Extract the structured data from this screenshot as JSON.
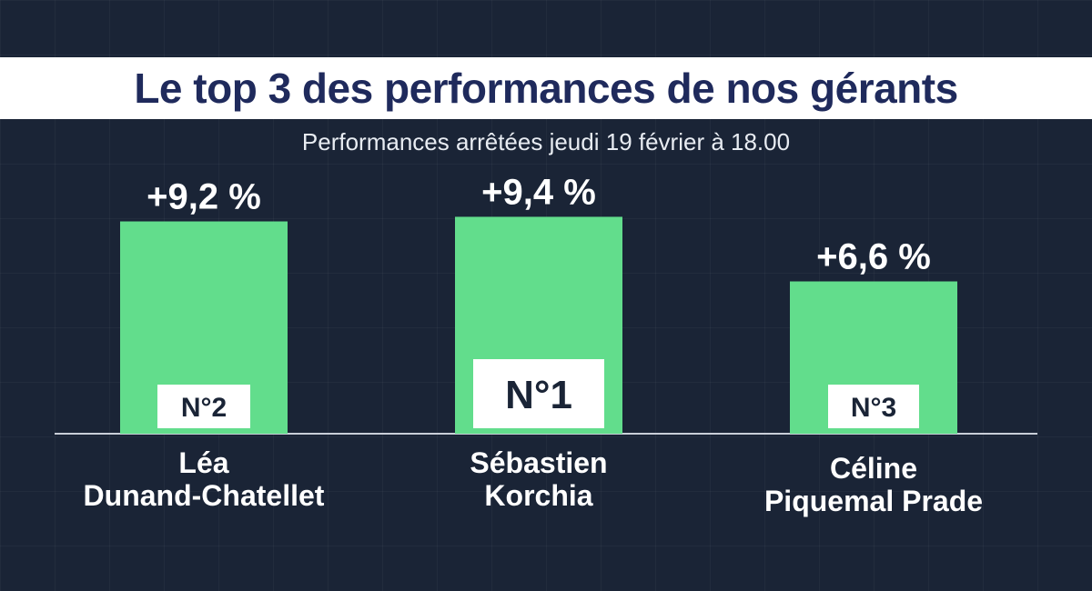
{
  "title": "Le top 3 des performances de nos gérants",
  "subtitle": "Performances arrêtées jeudi 19 février à 18.00",
  "colors": {
    "background": "#1a2436",
    "bar": "#62dd8c",
    "title_text": "#1f2a5c",
    "rank_box": "#ffffff"
  },
  "chart_data": {
    "type": "bar",
    "categories": [
      "Léa Dunand-Chatellet",
      "Sébastien Korchia",
      "Céline Piquemal Prade"
    ],
    "name_lines": [
      [
        "Léa",
        "Dunand-Chatellet"
      ],
      [
        "Sébastien",
        "Korchia"
      ],
      [
        "Céline",
        "Piquemal Prade"
      ]
    ],
    "values": [
      9.2,
      9.4,
      6.6
    ],
    "value_labels": [
      "+9,2 %",
      "+9,4 %",
      "+6,6 %"
    ],
    "ranks": [
      "N°2",
      "N°1",
      "N°3"
    ],
    "ylim": [
      0,
      9.4
    ],
    "grid": false,
    "title": "Le top 3 des performances de nos gérants"
  }
}
